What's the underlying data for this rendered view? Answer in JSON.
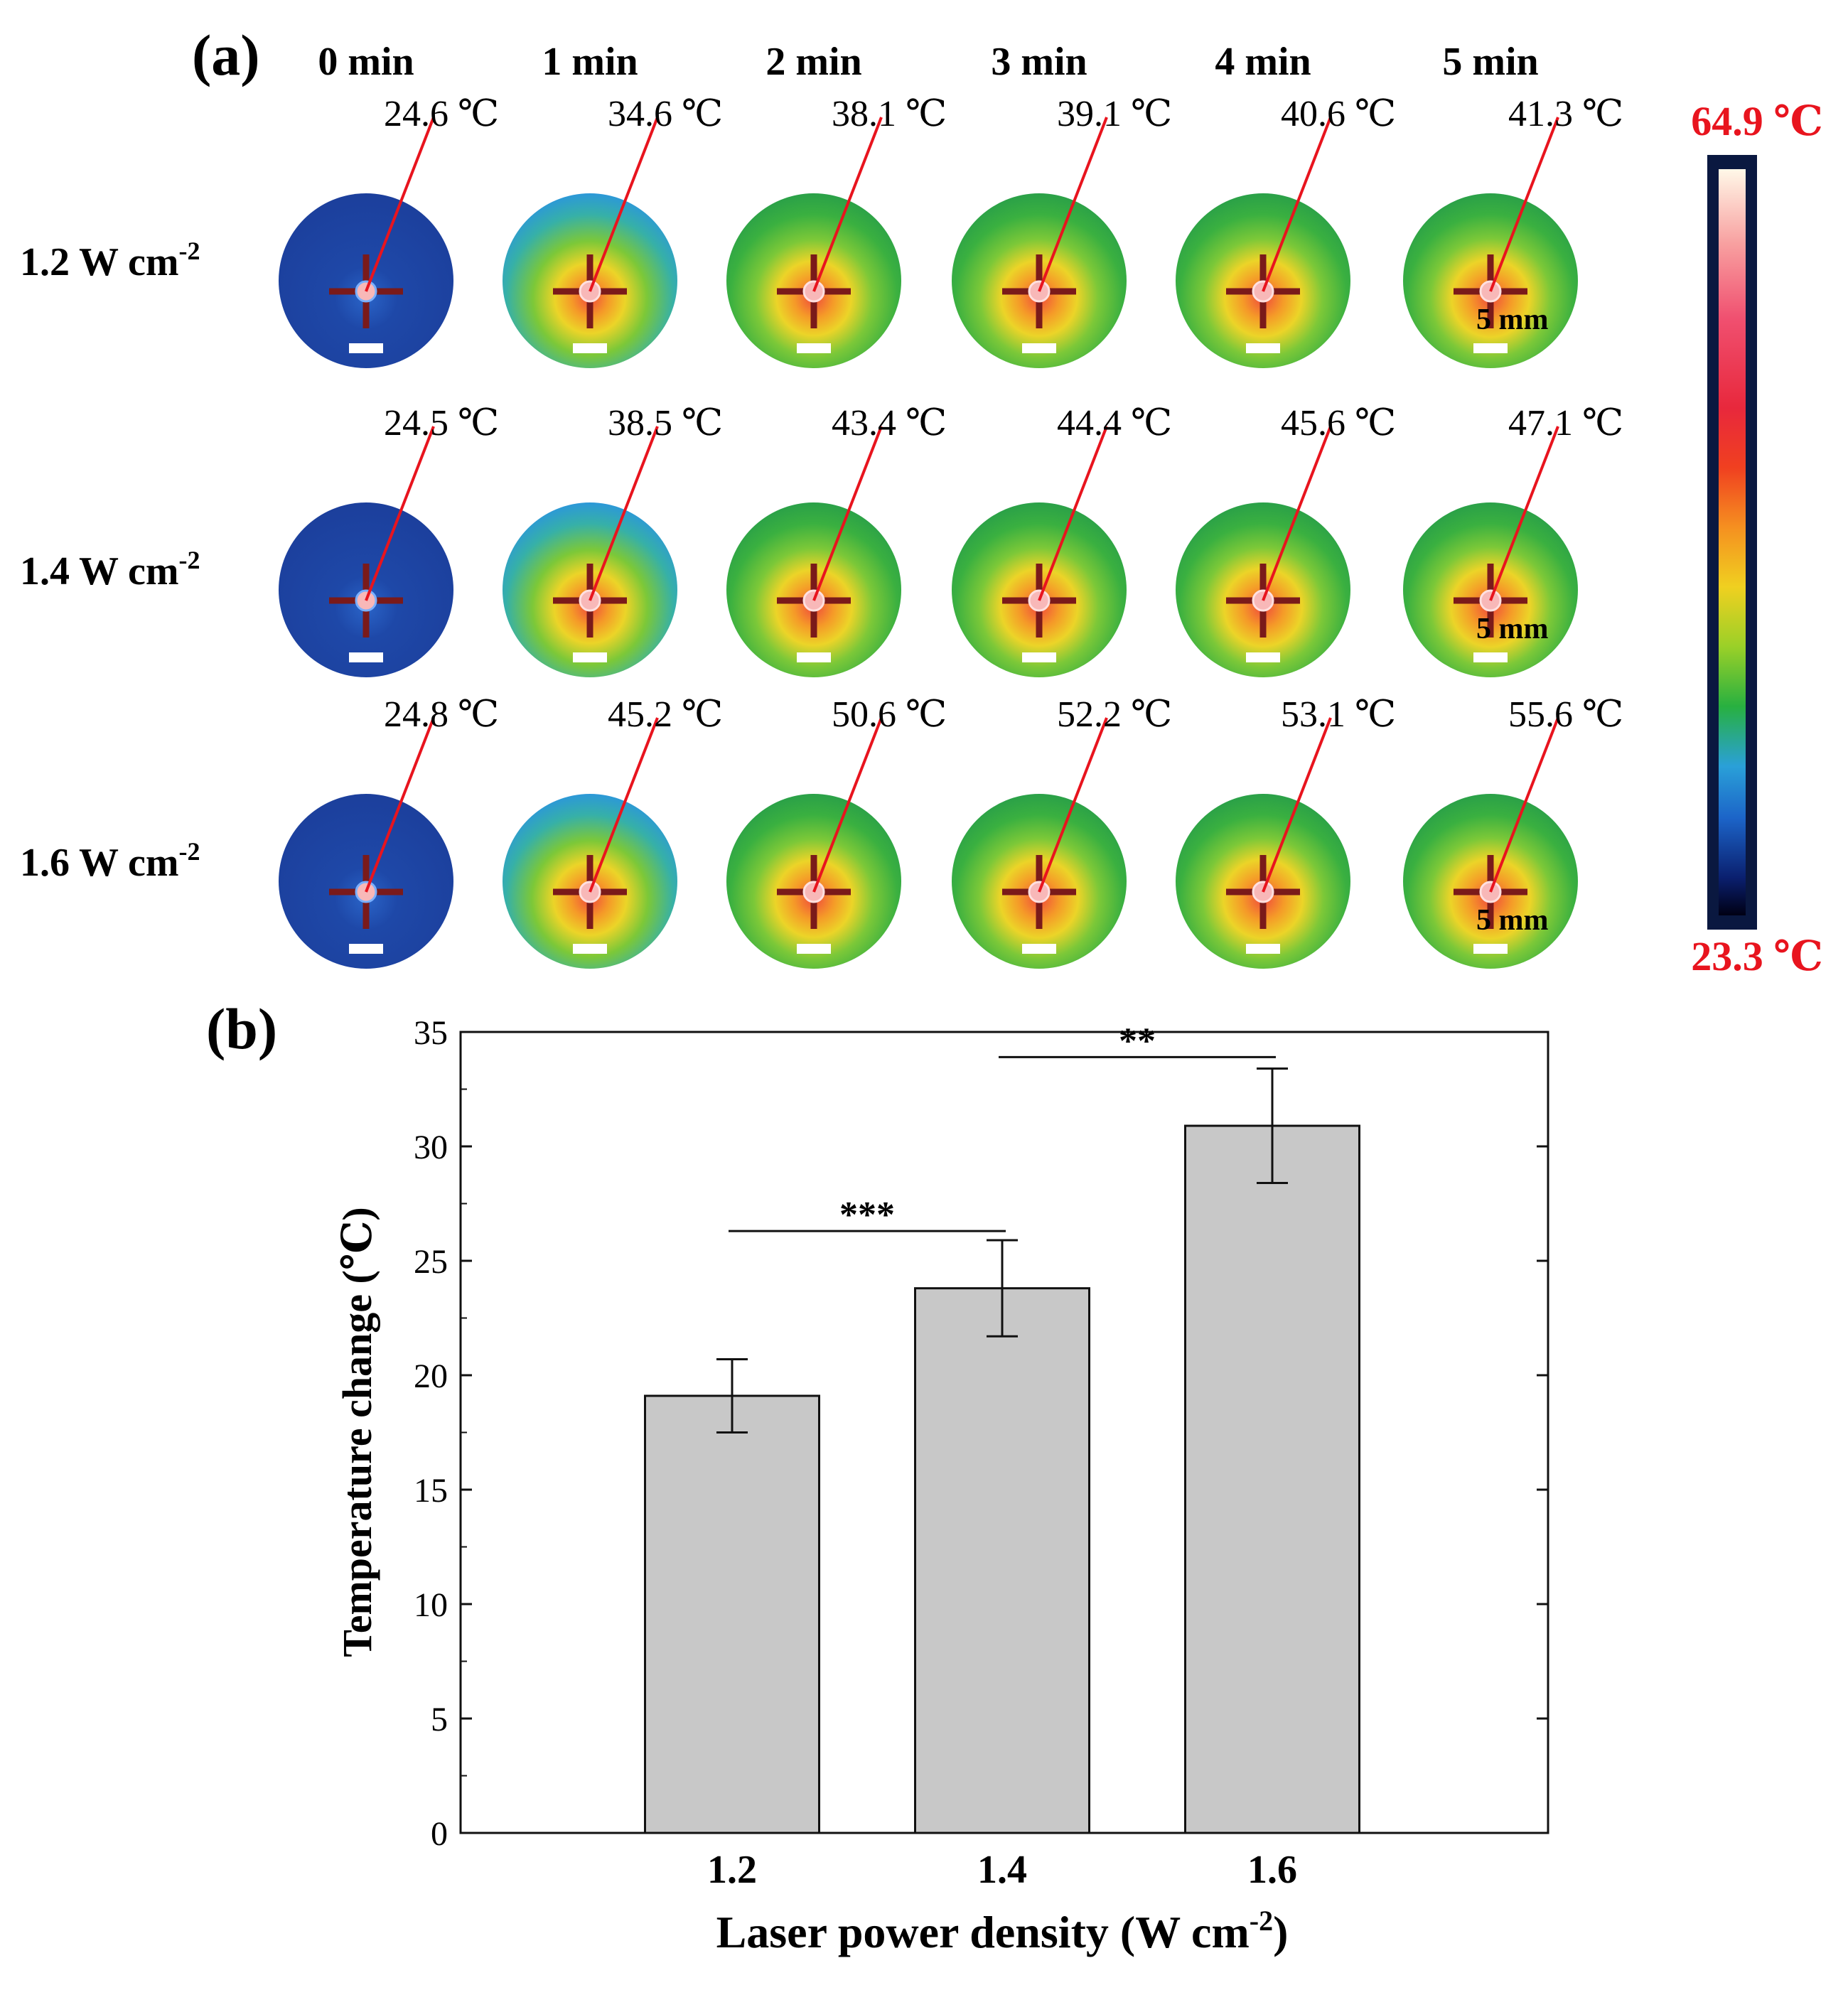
{
  "panel_a": {
    "label": "(a)",
    "time_headers": [
      "0 min",
      "1 min",
      "2 min",
      "3 min",
      "4 min",
      "5 min"
    ],
    "rows": [
      {
        "label_main": "1.2 W cm",
        "label_sup": "-2",
        "temps": [
          "24.6 ℃",
          "34.6 ℃",
          "38.1 ℃",
          "39.1 ℃",
          "40.6 ℃",
          "41.3 ℃"
        ]
      },
      {
        "label_main": "1.4 W cm",
        "label_sup": "-2",
        "temps": [
          "24.5 ℃",
          "38.5 ℃",
          "43.4 ℃",
          "44.4 ℃",
          "45.6 ℃",
          "47.1 ℃"
        ]
      },
      {
        "label_main": "1.6 W cm",
        "label_sup": "-2",
        "temps": [
          "24.8 ℃",
          "45.2 ℃",
          "50.6 ℃",
          "52.2 ℃",
          "53.1 ℃",
          "55.6 ℃"
        ]
      }
    ],
    "scale_bar_label": "5 mm",
    "colorbar": {
      "max_label": "64.9 ℃",
      "min_label": "23.3 ℃",
      "max_value": 64.9,
      "min_value": 23.3,
      "label_color": "#e8141e"
    },
    "colors": {
      "cold": "#1c3f9c",
      "marker": "#7a1a1a",
      "pointer": "#e8141e"
    }
  },
  "chart_data": {
    "panel_label": "(b)",
    "type": "bar",
    "title": "",
    "categories": [
      "1.2",
      "1.4",
      "1.6"
    ],
    "values": [
      19.1,
      23.8,
      30.9
    ],
    "errors": [
      1.6,
      2.1,
      2.5
    ],
    "xlabel_main": "Laser power density (W cm",
    "xlabel_sup": "-2",
    "xlabel_tail": ")",
    "ylabel": "Temperature change (℃)",
    "ylim": [
      0,
      35
    ],
    "yticks": [
      "0",
      "5",
      "10",
      "15",
      "20",
      "25",
      "30",
      "35"
    ],
    "bar_color": "#c8c8c8",
    "significance": [
      {
        "from": 0,
        "to": 1,
        "label": "***",
        "y": 26.3
      },
      {
        "from": 1,
        "to": 2,
        "label": "**",
        "y": 33.9
      }
    ]
  }
}
